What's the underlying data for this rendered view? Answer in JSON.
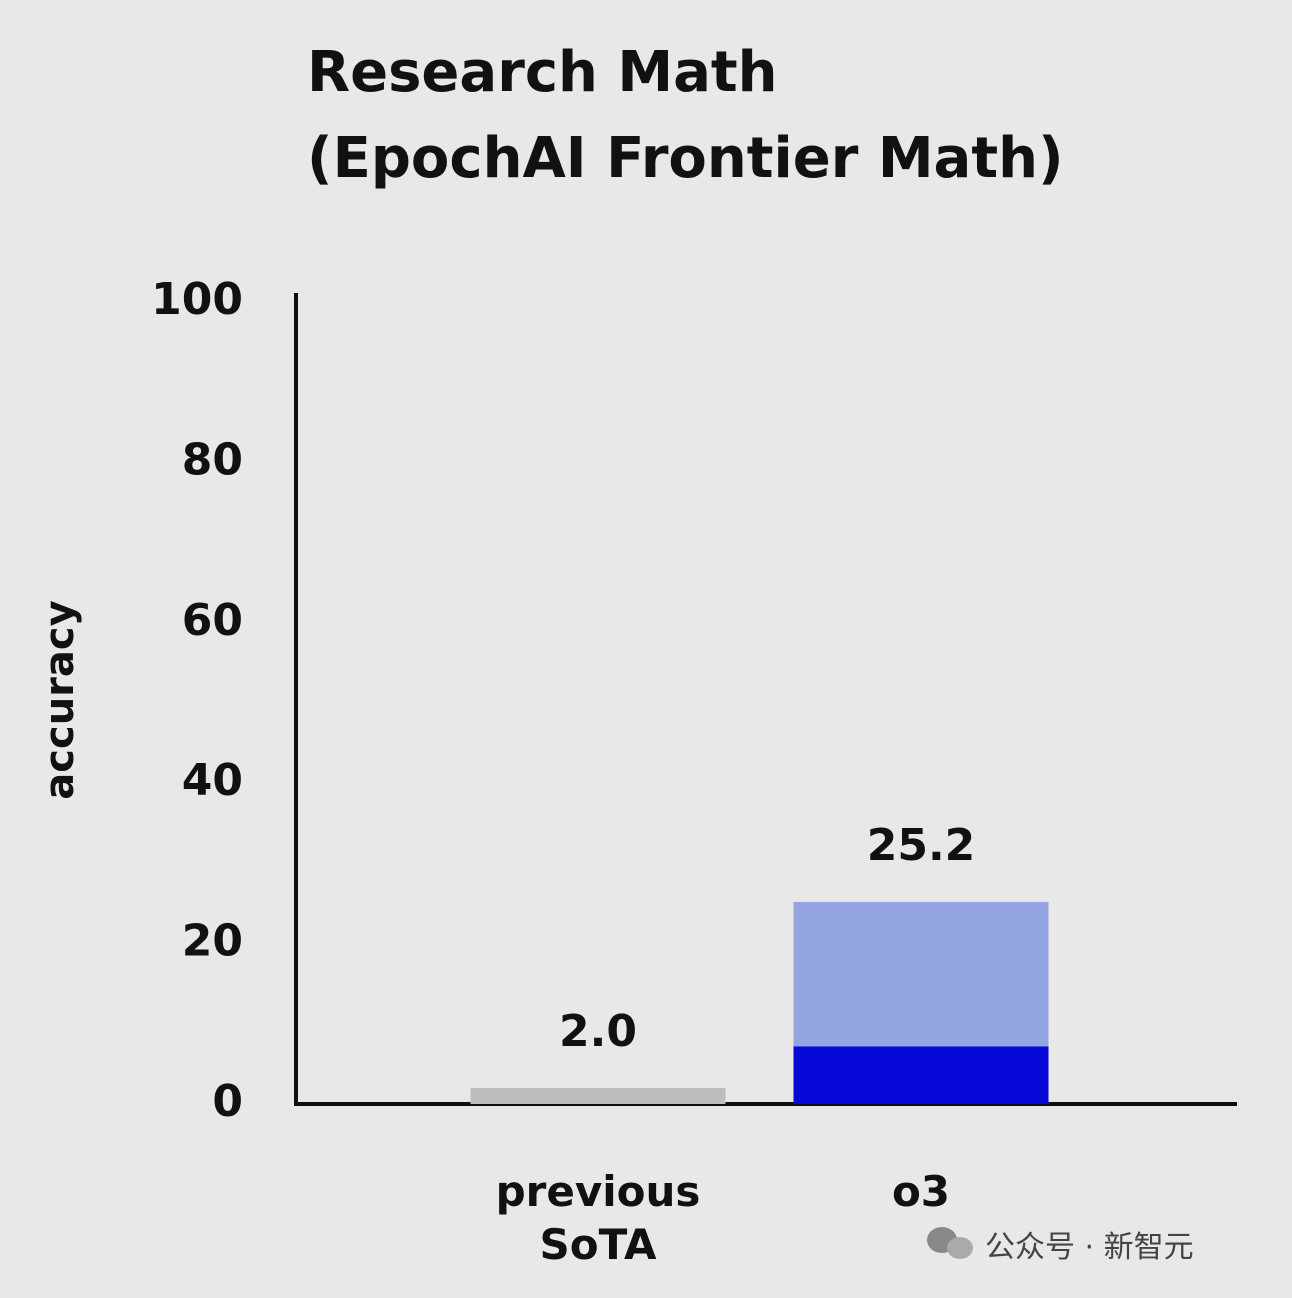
{
  "chart_data": {
    "type": "bar",
    "title": [
      "Research Math",
      "(EpochAI Frontier Math)"
    ],
    "y_label": "accuracy",
    "categories": [
      "previous SoTA",
      "o3"
    ],
    "series": [
      {
        "color": "#bdbdbf",
        "values": [
          2.0,
          null
        ]
      },
      {
        "color": "#0808d8",
        "values": [
          null,
          7.2
        ]
      },
      {
        "color": "#94a6e2",
        "values": [
          null,
          18.0
        ]
      }
    ],
    "totals": [
      2.0,
      25.2
    ],
    "total_labels": [
      "2.0",
      "25.2"
    ],
    "ylim": [
      0,
      100
    ],
    "yticks": [
      0,
      20,
      40,
      60,
      80,
      100
    ],
    "grid": false
  },
  "watermark": "公众号 · 新智元"
}
